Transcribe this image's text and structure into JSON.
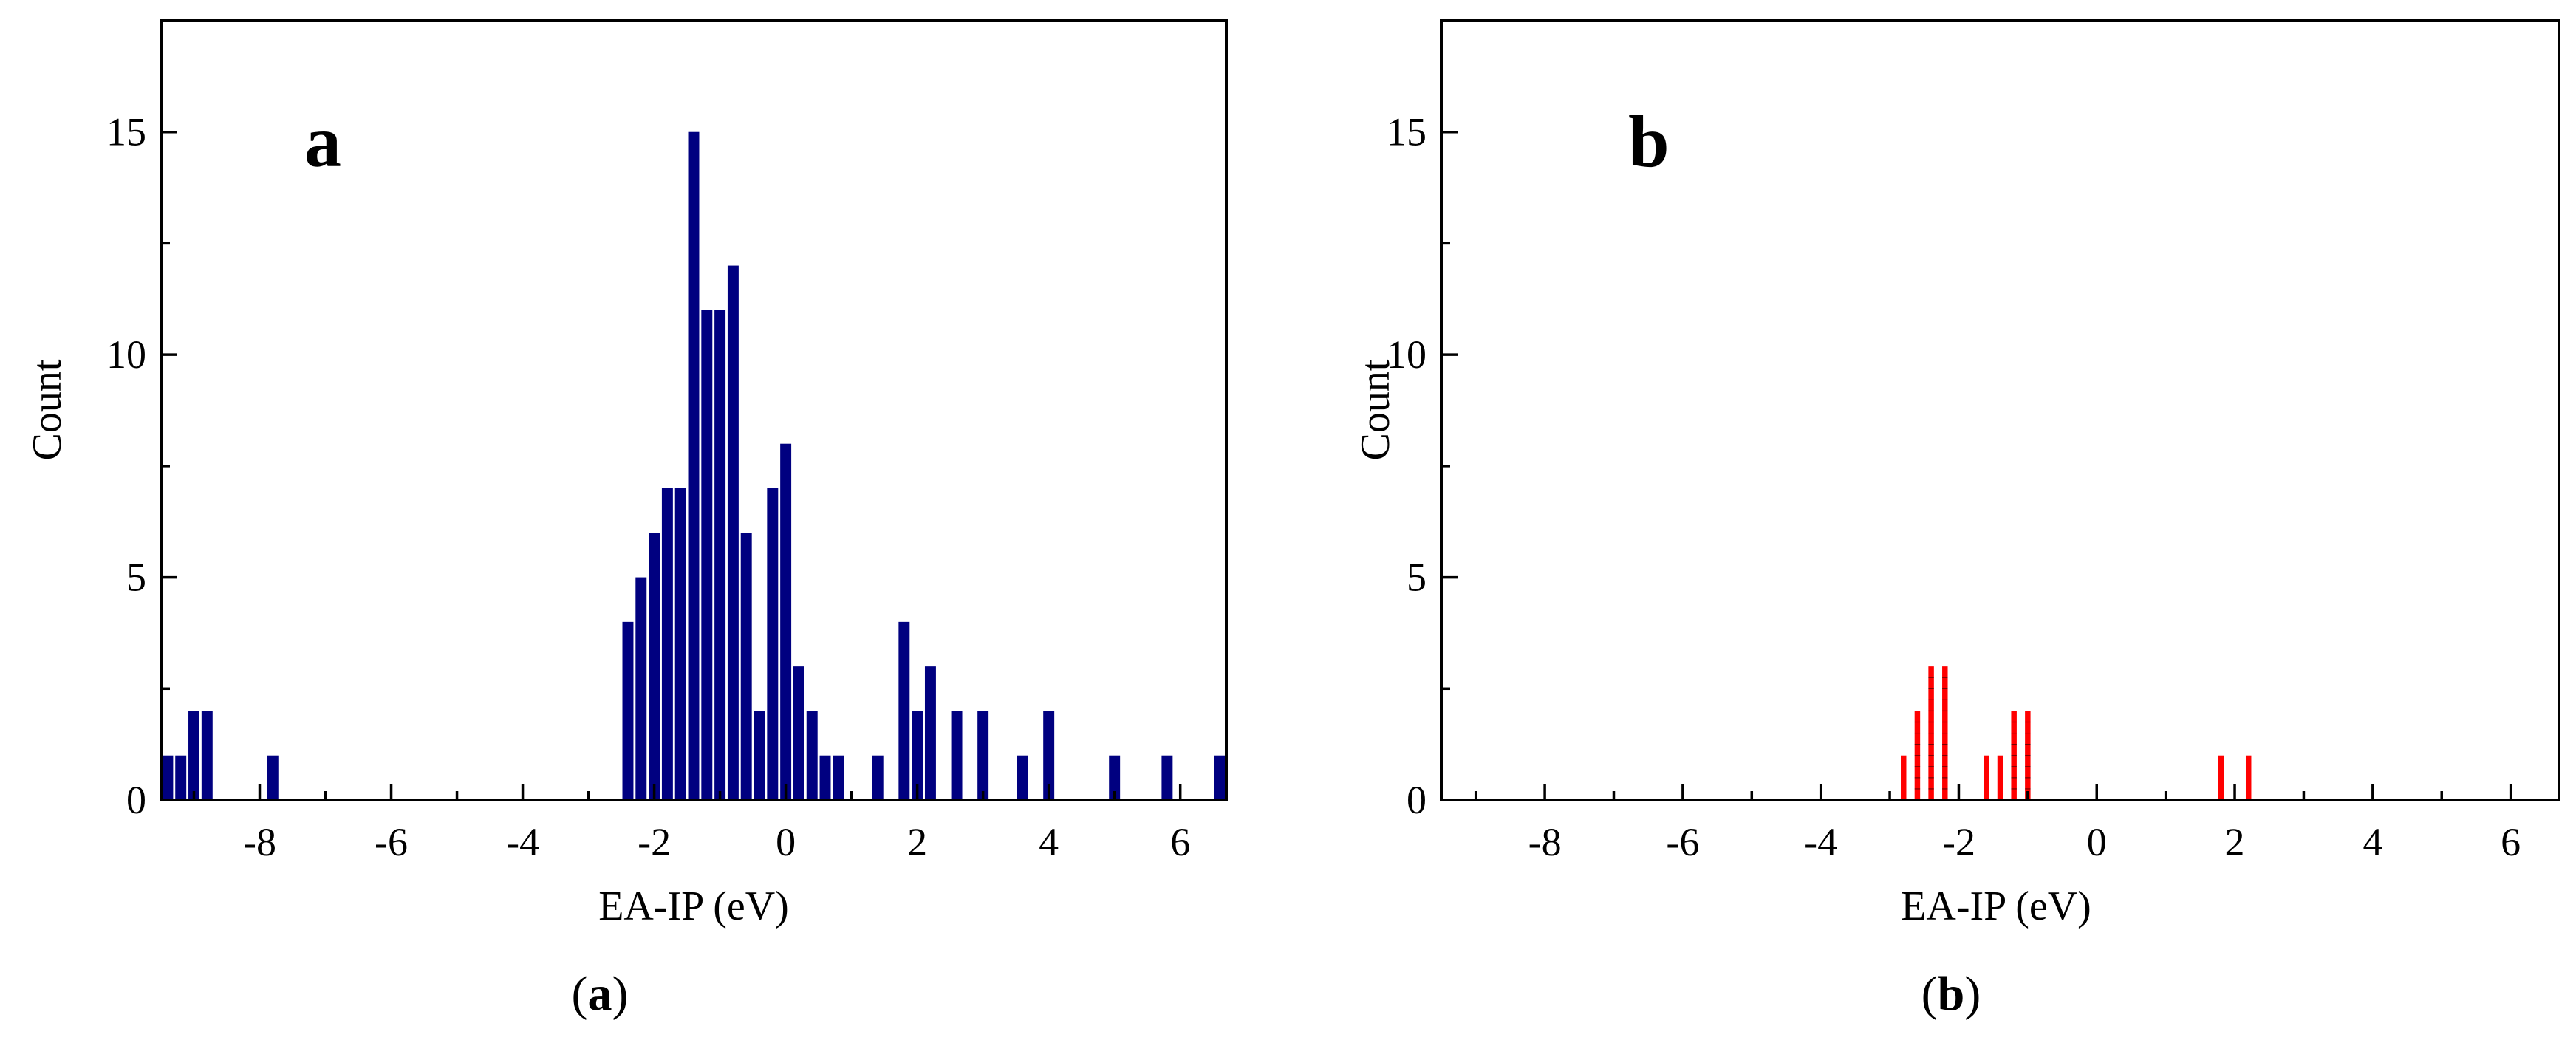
{
  "chart_data": [
    {
      "type": "bar",
      "panel_letter": "a",
      "caption_open": "(",
      "caption_letter": "a",
      "caption_close": ")",
      "xlabel": "EA-IP (eV)",
      "ylabel": "Count",
      "xlim": [
        -9.5,
        6.7
      ],
      "ylim": [
        0,
        17.5
      ],
      "xticks": [
        -8,
        -6,
        -4,
        -2,
        0,
        2,
        4,
        6
      ],
      "yticks": [
        0,
        5,
        10,
        15
      ],
      "bin_width": 0.2,
      "color": "#000080",
      "grid": false,
      "x": [
        -9.4,
        -9.2,
        -9.0,
        -8.8,
        -7.8,
        -2.4,
        -2.2,
        -2.0,
        -1.8,
        -1.6,
        -1.4,
        -1.2,
        -1.0,
        -0.8,
        -0.6,
        -0.4,
        -0.2,
        0.0,
        0.2,
        0.4,
        0.6,
        0.8,
        1.4,
        1.8,
        2.0,
        2.2,
        2.6,
        3.0,
        3.6,
        4.0,
        5.0,
        5.8,
        6.6
      ],
      "values": [
        1,
        1,
        2,
        2,
        1,
        4,
        5,
        6,
        7,
        7,
        15,
        11,
        11,
        12,
        6,
        2,
        7,
        8,
        3,
        2,
        1,
        1,
        1,
        4,
        2,
        3,
        2,
        2,
        1,
        2,
        1,
        1,
        1
      ]
    },
    {
      "type": "bar",
      "panel_letter": "b",
      "caption_open": "(",
      "caption_letter": "b",
      "caption_close": ")",
      "xlabel": "EA-IP (eV)",
      "ylabel": "Count",
      "xlim": [
        -9.5,
        6.7
      ],
      "ylim": [
        0,
        17.5
      ],
      "xticks": [
        -8,
        -6,
        -4,
        -2,
        0,
        2,
        4,
        6
      ],
      "yticks": [
        0,
        5,
        10,
        15
      ],
      "bin_width": 0.1,
      "color": "#ff0000",
      "grid": false,
      "x": [
        -2.8,
        -2.6,
        -2.4,
        -2.2,
        -1.6,
        -1.4,
        -1.2,
        -1.0,
        1.8,
        2.2
      ],
      "values": [
        1,
        2,
        3,
        3,
        1,
        1,
        2,
        2,
        1,
        1
      ]
    }
  ]
}
